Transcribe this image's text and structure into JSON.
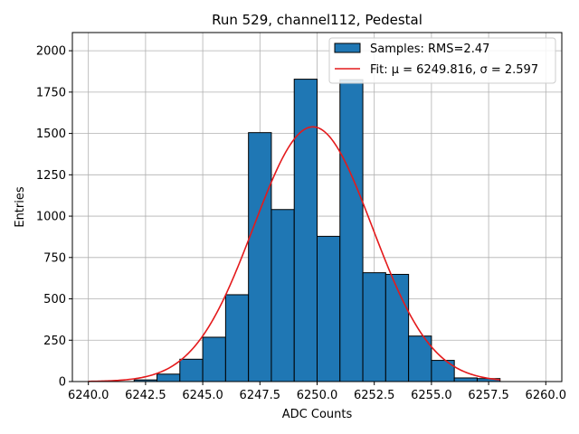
{
  "chart_data": {
    "type": "bar",
    "title": "Run 529, channel112, Pedestal",
    "xlabel": "ADC Counts",
    "ylabel": "Entries",
    "xlim": [
      6239.3,
      6260.7
    ],
    "ylim": [
      0,
      2110
    ],
    "xticks": [
      6240.0,
      6242.5,
      6245.0,
      6247.5,
      6250.0,
      6252.5,
      6255.0,
      6257.5,
      6260.0
    ],
    "xtick_labels": [
      "6240.0",
      "6242.5",
      "6245.0",
      "6247.5",
      "6250.0",
      "6252.5",
      "6255.0",
      "6257.5",
      "6260.0"
    ],
    "yticks": [
      0,
      250,
      500,
      750,
      1000,
      1250,
      1500,
      1750,
      2000
    ],
    "ytick_labels": [
      "0",
      "250",
      "500",
      "750",
      "1000",
      "1250",
      "1500",
      "1750",
      "2000"
    ],
    "grid": true,
    "legend_position": "top-right",
    "bin_width": 1,
    "bins": [
      {
        "left": 6242,
        "value": 10
      },
      {
        "left": 6243,
        "value": 45
      },
      {
        "left": 6244,
        "value": 135
      },
      {
        "left": 6245,
        "value": 268
      },
      {
        "left": 6246,
        "value": 525
      },
      {
        "left": 6247,
        "value": 1505
      },
      {
        "left": 6248,
        "value": 1040
      },
      {
        "left": 6249,
        "value": 1828
      },
      {
        "left": 6250,
        "value": 878
      },
      {
        "left": 6251,
        "value": 1825
      },
      {
        "left": 6252,
        "value": 658
      },
      {
        "left": 6253,
        "value": 648
      },
      {
        "left": 6254,
        "value": 275
      },
      {
        "left": 6255,
        "value": 128
      },
      {
        "left": 6256,
        "value": 22
      },
      {
        "left": 6257,
        "value": 18
      }
    ],
    "series": [
      {
        "name": "Samples: RMS=2.47",
        "kind": "histogram",
        "color": "#1f77b4",
        "edgecolor": "#000000"
      },
      {
        "name": "Fit: μ = 6249.816, σ = 2.597",
        "kind": "gaussian",
        "color": "#e41a1c",
        "mu": 6249.816,
        "sigma": 2.597,
        "amplitude": 1540,
        "x_range": [
          6240,
          6258
        ]
      }
    ]
  }
}
